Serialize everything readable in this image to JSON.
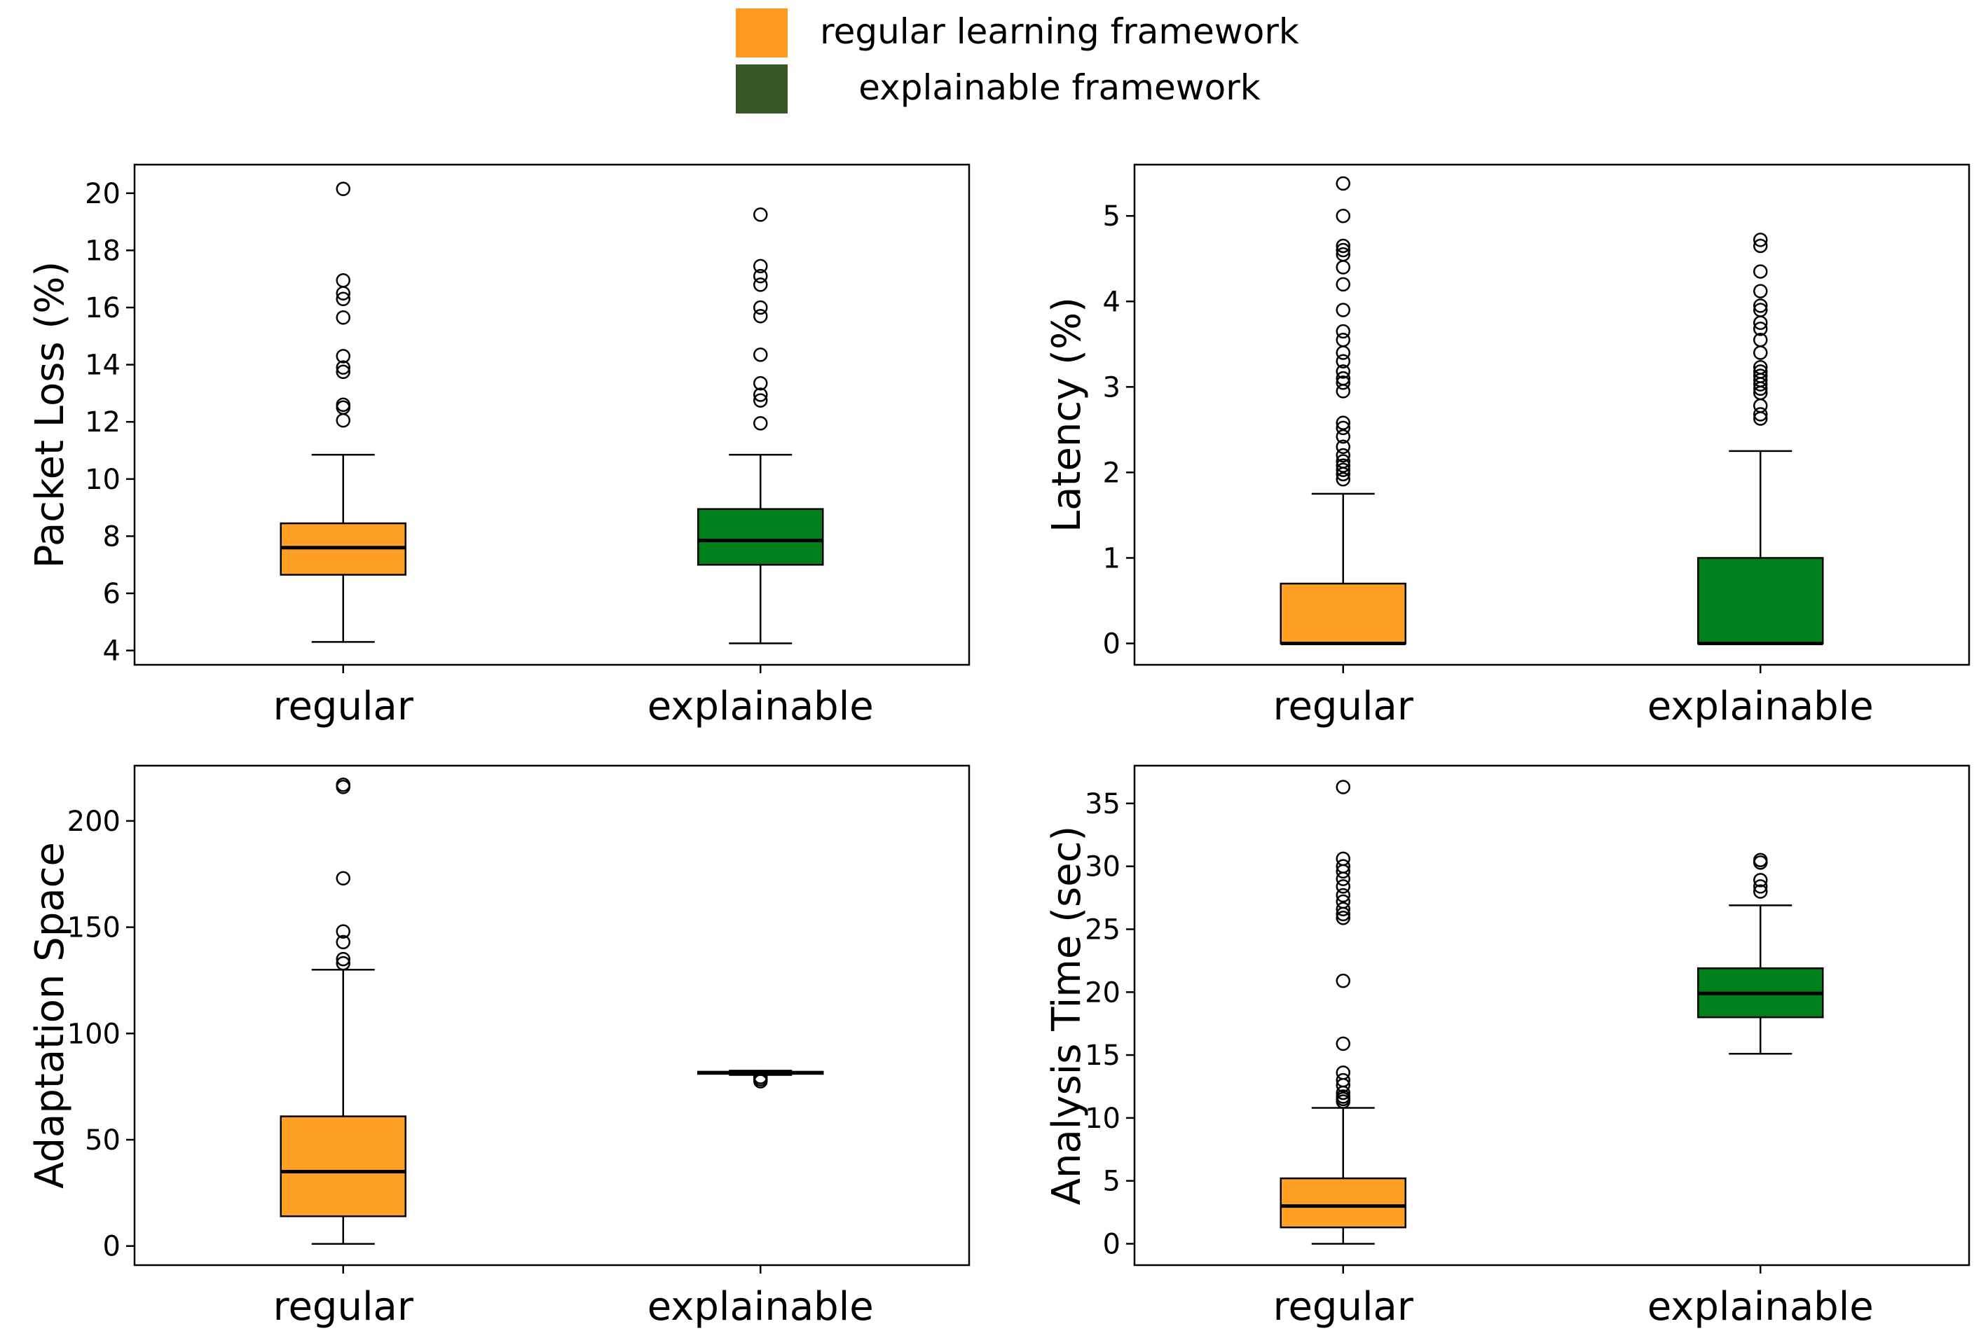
{
  "legend": {
    "entries": [
      {
        "label": "regular learning framework",
        "color": "#ff9a1e"
      },
      {
        "label": "explainable framework",
        "color": "#375623"
      }
    ]
  },
  "colors": {
    "regular_box": "#ffa024",
    "explainable_box": "#00801a",
    "legend_regular": "#ff9a1e",
    "legend_explainable": "#375623"
  },
  "chart_data": [
    {
      "type": "box",
      "ylabel": "Packet Loss (%)",
      "categories": [
        "regular",
        "explainable"
      ],
      "ylim": [
        3.5,
        21
      ],
      "yticks": [
        4,
        6,
        8,
        10,
        12,
        14,
        16,
        18,
        20
      ],
      "ytick_labels": [
        "4",
        "6",
        "8",
        "10",
        "12",
        "14",
        "16",
        "18",
        "20"
      ],
      "boxes": [
        {
          "category": "regular",
          "whisker_low": 4.3,
          "q1": 6.65,
          "median": 7.6,
          "q3": 8.45,
          "whisker_high": 10.85,
          "outliers": [
            12.05,
            12.5,
            12.6,
            13.75,
            13.9,
            14.3,
            15.65,
            16.3,
            16.5,
            16.95,
            20.15
          ]
        },
        {
          "category": "explainable",
          "whisker_low": 4.25,
          "q1": 7.0,
          "median": 7.85,
          "q3": 8.95,
          "whisker_high": 10.85,
          "outliers": [
            11.95,
            12.75,
            12.95,
            13.35,
            14.35,
            15.7,
            16.0,
            16.8,
            17.1,
            17.45,
            19.25
          ]
        }
      ]
    },
    {
      "type": "box",
      "ylabel": "Latency (%)",
      "categories": [
        "regular",
        "explainable"
      ],
      "ylim": [
        -0.25,
        5.6
      ],
      "yticks": [
        0,
        1,
        2,
        3,
        4,
        5
      ],
      "ytick_labels": [
        "0",
        "1",
        "2",
        "3",
        "4",
        "5"
      ],
      "boxes": [
        {
          "category": "regular",
          "whisker_low": 0,
          "q1": 0,
          "median": 0,
          "q3": 0.7,
          "whisker_high": 1.75,
          "outliers": [
            1.92,
            1.98,
            2.03,
            2.08,
            2.13,
            2.2,
            2.3,
            2.42,
            2.52,
            2.58,
            2.95,
            3.05,
            3.1,
            3.18,
            3.3,
            3.4,
            3.55,
            3.65,
            3.9,
            4.2,
            4.4,
            4.55,
            4.6,
            4.65,
            5.0,
            5.38
          ]
        },
        {
          "category": "explainable",
          "whisker_low": 0,
          "q1": 0,
          "median": 0,
          "q3": 1.0,
          "whisker_high": 2.25,
          "outliers": [
            2.63,
            2.68,
            2.78,
            2.93,
            2.98,
            3.03,
            3.08,
            3.13,
            3.18,
            3.23,
            3.4,
            3.55,
            3.68,
            3.75,
            3.9,
            3.95,
            4.12,
            4.35,
            4.65,
            4.72
          ]
        }
      ]
    },
    {
      "type": "box",
      "ylabel": "Adaptation Space",
      "categories": [
        "regular",
        "explainable"
      ],
      "ylim": [
        -9,
        226
      ],
      "yticks": [
        0,
        50,
        100,
        150,
        200
      ],
      "ytick_labels": [
        "0",
        "50",
        "100",
        "150",
        "200"
      ],
      "boxes": [
        {
          "category": "regular",
          "whisker_low": 1,
          "q1": 14,
          "median": 35,
          "q3": 61,
          "whisker_high": 130,
          "outliers": [
            133,
            135,
            143,
            148,
            173,
            216,
            217
          ]
        },
        {
          "category": "explainable",
          "whisker_low": 80.5,
          "q1": 81,
          "median": 81.5,
          "q3": 82,
          "whisker_high": 82.5,
          "outliers": [
            77.5,
            78.5,
            79.5
          ]
        }
      ]
    },
    {
      "type": "box",
      "ylabel": "Analysis Time (sec)",
      "categories": [
        "regular",
        "explainable"
      ],
      "ylim": [
        -1.7,
        38
      ],
      "yticks": [
        0,
        5,
        10,
        15,
        20,
        25,
        30,
        35
      ],
      "ytick_labels": [
        "0",
        "5",
        "10",
        "15",
        "20",
        "25",
        "30",
        "35"
      ],
      "boxes": [
        {
          "category": "regular",
          "whisker_low": 0,
          "q1": 1.3,
          "median": 3.0,
          "q3": 5.2,
          "whisker_high": 10.8,
          "outliers": [
            11.3,
            11.5,
            11.7,
            12.0,
            12.6,
            13.0,
            13.6,
            15.9,
            20.9,
            25.9,
            26.2,
            26.6,
            27.2,
            27.7,
            28.4,
            29.0,
            29.6,
            30.0,
            30.6,
            36.3
          ]
        },
        {
          "category": "explainable",
          "whisker_low": 15.1,
          "q1": 18.0,
          "median": 19.9,
          "q3": 21.9,
          "whisker_high": 26.9,
          "outliers": [
            28.0,
            28.4,
            28.9,
            30.3,
            30.5
          ]
        }
      ]
    }
  ]
}
